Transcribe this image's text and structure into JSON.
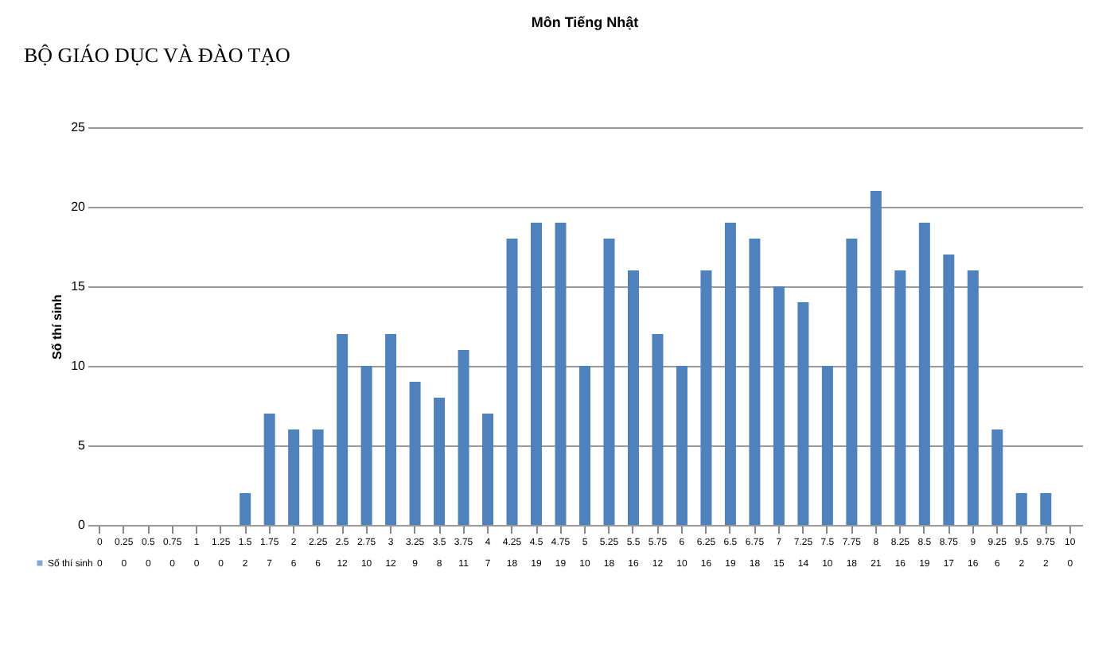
{
  "chart_data": {
    "type": "bar",
    "title": "Môn Tiếng Nhật",
    "ylabel": "Số thí sinh",
    "annotations": [
      "BỘ GIÁO DỤC VÀ ĐÀO TẠO"
    ],
    "categories": [
      "0",
      "0.25",
      "0.5",
      "0.75",
      "1",
      "1.25",
      "1.5",
      "1.75",
      "2",
      "2.25",
      "2.5",
      "2.75",
      "3",
      "3.25",
      "3.5",
      "3.75",
      "4",
      "4.25",
      "4.5",
      "4.75",
      "5",
      "5.25",
      "5.5",
      "5.75",
      "6",
      "6.25",
      "6.5",
      "6.75",
      "7",
      "7.25",
      "7.5",
      "7.75",
      "8",
      "8.25",
      "8.5",
      "8.75",
      "9",
      "9.25",
      "9.5",
      "9.75",
      "10"
    ],
    "series": [
      {
        "name": "Số thí sinh",
        "color": "#4f81bd",
        "values": [
          0,
          0,
          0,
          0,
          0,
          0,
          2,
          7,
          6,
          6,
          12,
          10,
          12,
          9,
          8,
          11,
          7,
          18,
          19,
          19,
          10,
          18,
          16,
          12,
          10,
          16,
          19,
          18,
          15,
          14,
          10,
          18,
          21,
          16,
          19,
          17,
          16,
          6,
          2,
          2,
          0
        ]
      }
    ],
    "ylim": [
      0,
      25
    ],
    "yticks": [
      0,
      5,
      10,
      15,
      20,
      25
    ],
    "grid": "y",
    "data_labels": true,
    "legend": "bottom"
  }
}
